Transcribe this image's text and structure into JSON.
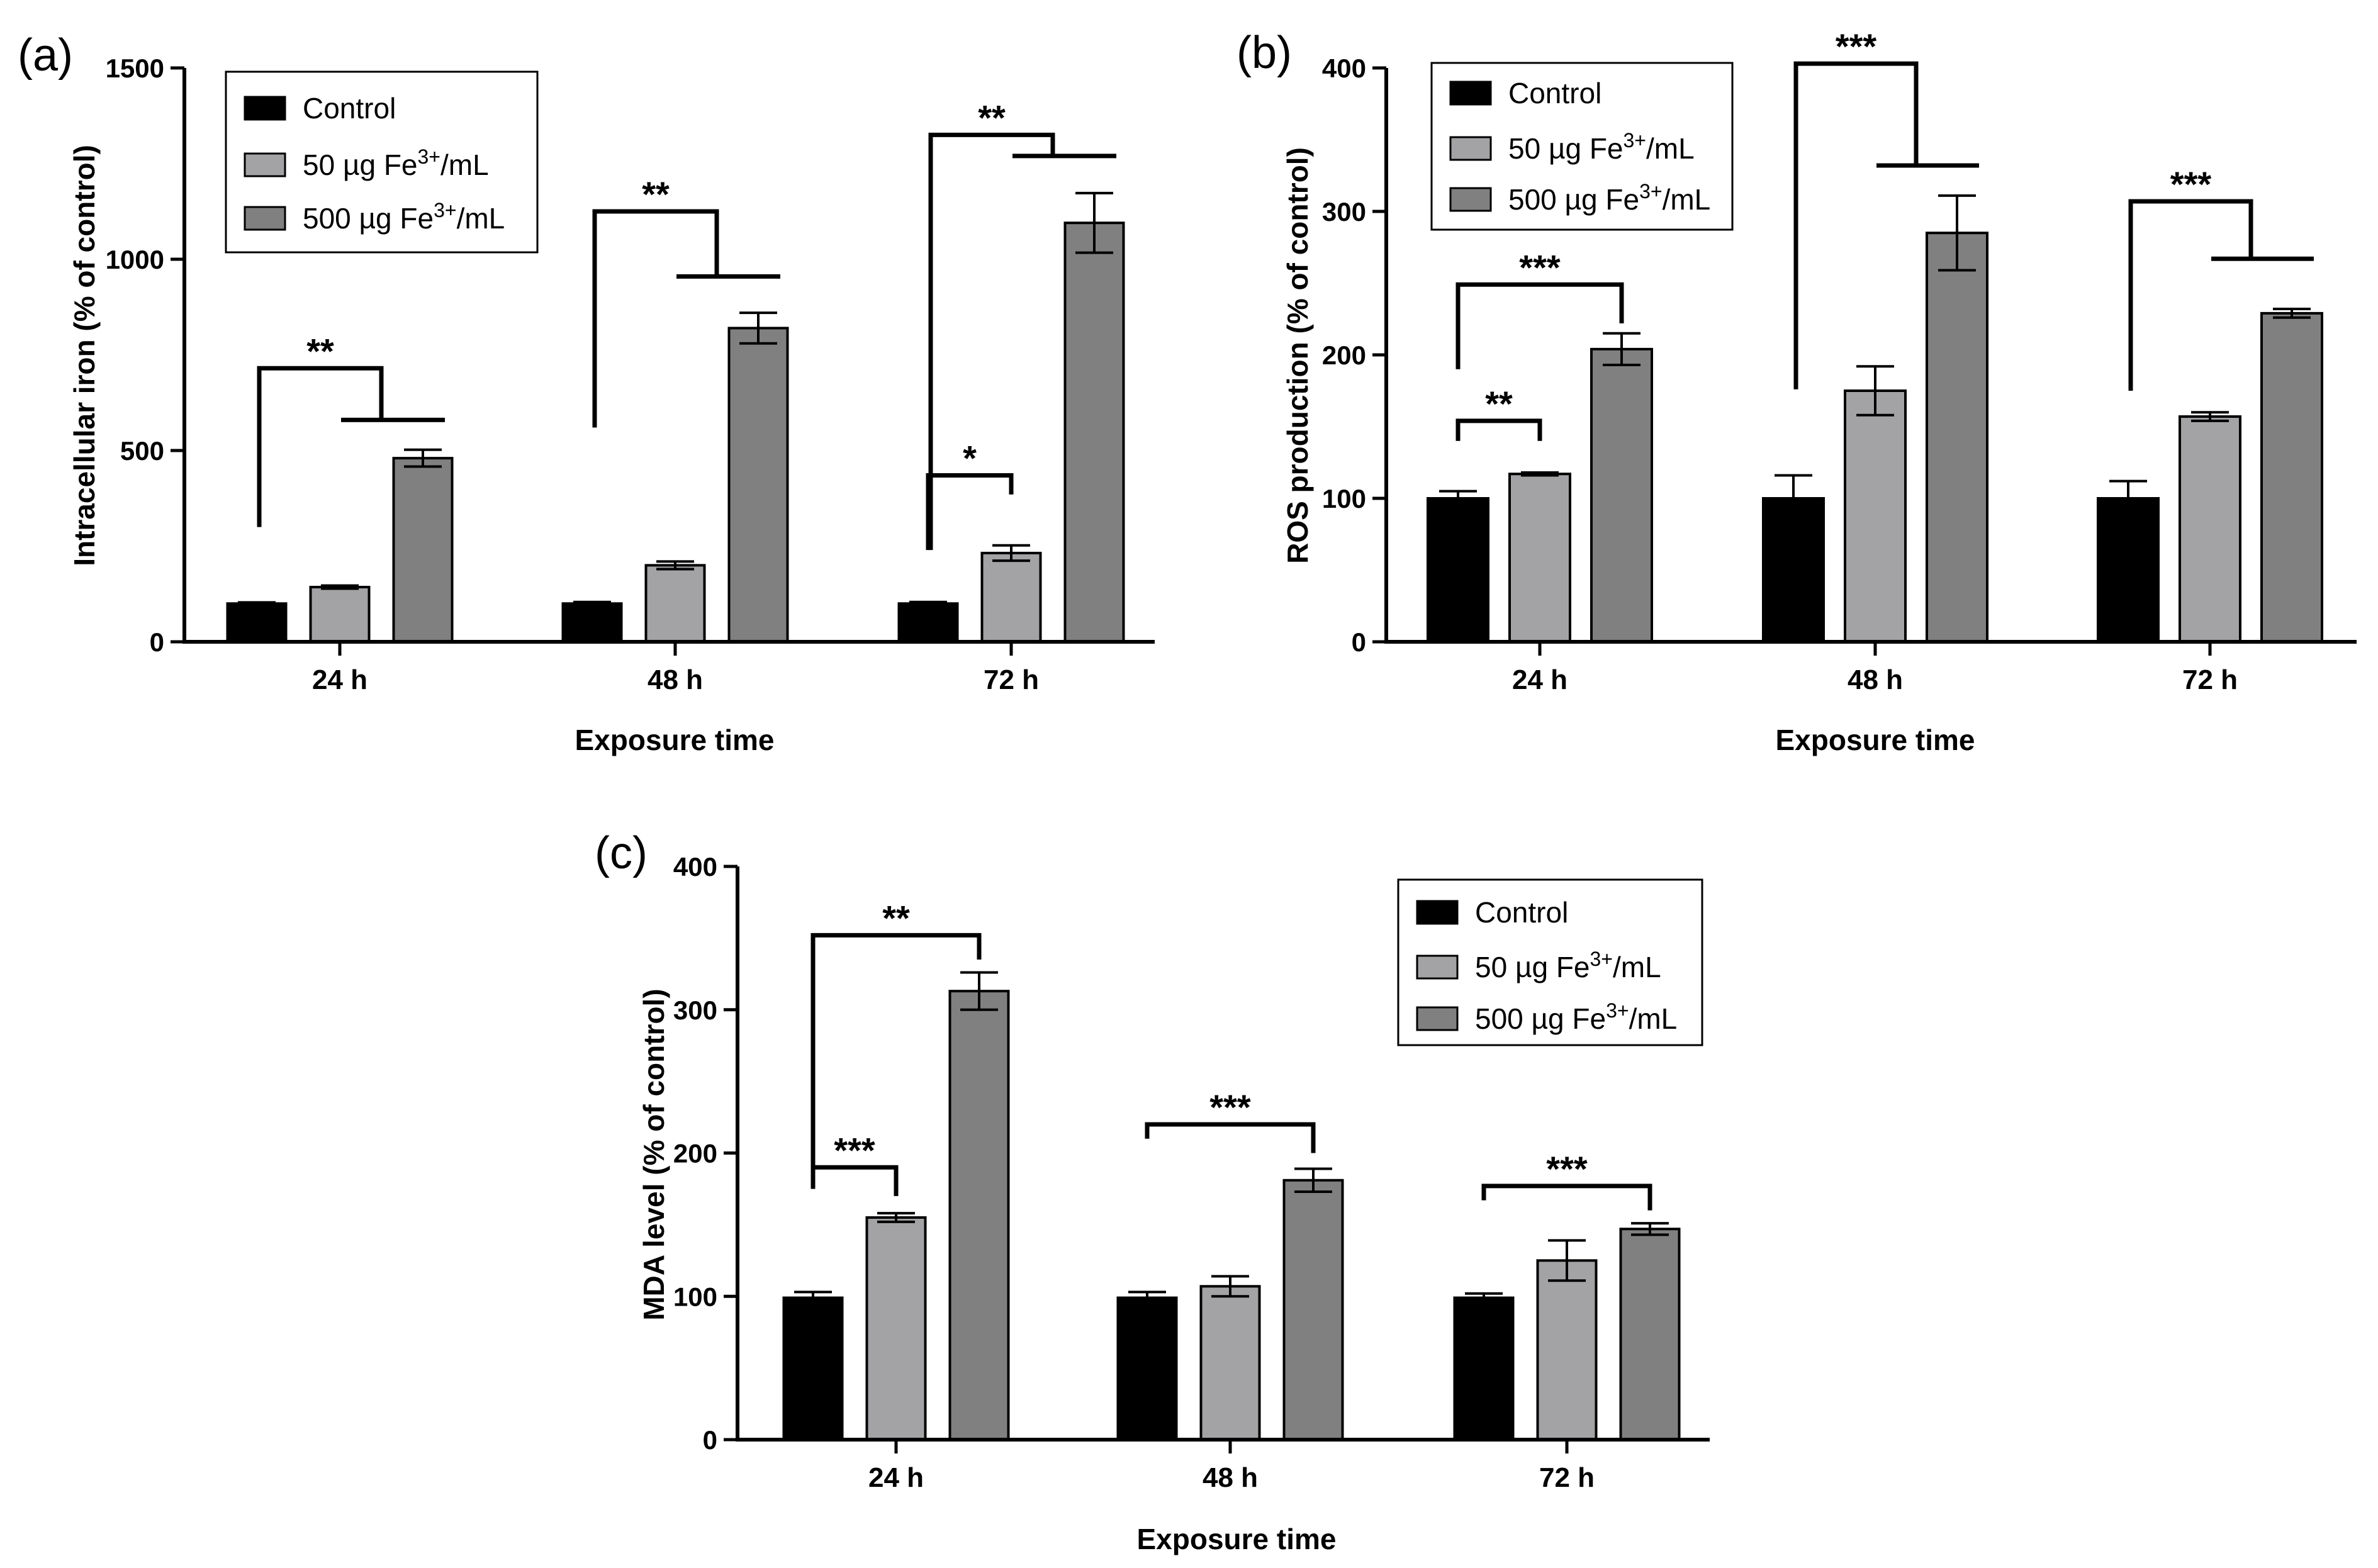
{
  "colors": {
    "control": "#000000",
    "fe50": "#a3a3a6",
    "fe500": "#808080",
    "axis": "#000000",
    "background": "#ffffff"
  },
  "chart_data": [
    {
      "panel": "(a)",
      "type": "bar",
      "title": "",
      "xlabel": "Exposure time",
      "ylabel": "Intracellular iron (% of control)",
      "ylim": [
        0,
        1500
      ],
      "yticks": [
        0,
        500,
        1000,
        1500
      ],
      "categories": [
        "24 h",
        "48 h",
        "72 h"
      ],
      "series": [
        {
          "name": "Control",
          "color": "#000000",
          "values": [
            100,
            100,
            100
          ],
          "errors": [
            3,
            4,
            4
          ]
        },
        {
          "name": "50 µg Fe3+/mL",
          "color": "#a3a3a6",
          "values": [
            143,
            200,
            232
          ],
          "errors": [
            4,
            10,
            20
          ]
        },
        {
          "name": "500 µg Fe3+/mL",
          "color": "#808080",
          "values": [
            480,
            820,
            1095
          ],
          "errors": [
            22,
            40,
            78
          ]
        }
      ],
      "legend": {
        "position": "top-left",
        "entries": [
          {
            "base": "Control",
            "sup": "",
            "tail": ""
          },
          {
            "base": "50 µg Fe",
            "sup": "3+",
            "tail": "/mL"
          },
          {
            "base": "500 µg Fe",
            "sup": "3+",
            "tail": "/mL"
          }
        ]
      },
      "significance": [
        {
          "category": 0,
          "kind": "group",
          "label": "**",
          "top": 715,
          "from_value": 300,
          "to_value": 580
        },
        {
          "category": 1,
          "kind": "group",
          "label": "**",
          "top": 1125,
          "from_value": 560,
          "to_value": 955
        },
        {
          "category": 2,
          "kind": "group",
          "label": "**",
          "top": 1325,
          "from_value": 240,
          "to_value": 1270
        },
        {
          "category": 2,
          "kind": "pair",
          "label": "*",
          "from_series": 0,
          "to_series": 1,
          "top": 435,
          "from_value": 240,
          "to_value": 385
        }
      ]
    },
    {
      "panel": "(b)",
      "type": "bar",
      "title": "",
      "xlabel": "Exposure time",
      "ylabel": "ROS production (% of control)",
      "ylim": [
        0,
        400
      ],
      "yticks": [
        0,
        100,
        200,
        300,
        400
      ],
      "categories": [
        "24 h",
        "48 h",
        "72 h"
      ],
      "series": [
        {
          "name": "Control",
          "color": "#000000",
          "values": [
            100,
            100,
            100
          ],
          "errors": [
            5,
            16,
            12
          ]
        },
        {
          "name": "50 µg Fe3+/mL",
          "color": "#a3a3a6",
          "values": [
            117,
            175,
            157
          ],
          "errors": [
            1,
            17,
            3
          ]
        },
        {
          "name": "500 µg Fe3+/mL",
          "color": "#808080",
          "values": [
            204,
            285,
            229
          ],
          "errors": [
            11,
            26,
            3
          ]
        }
      ],
      "legend": {
        "position": "top-left",
        "entries": [
          {
            "base": "Control",
            "sup": "",
            "tail": ""
          },
          {
            "base": "50 µg Fe",
            "sup": "3+",
            "tail": "/mL"
          },
          {
            "base": "500 µg Fe",
            "sup": "3+",
            "tail": "/mL"
          }
        ]
      },
      "significance": [
        {
          "category": 0,
          "kind": "pair",
          "label": "***",
          "from_series": 0,
          "to_series": 2,
          "top": 249,
          "from_value": 190,
          "to_value": 222
        },
        {
          "category": 0,
          "kind": "pair",
          "label": "**",
          "from_series": 0,
          "to_series": 1,
          "top": 154,
          "from_value": 140,
          "to_value": 140
        },
        {
          "category": 1,
          "kind": "group",
          "label": "***",
          "top": 403,
          "from_value": 176,
          "to_value": 332
        },
        {
          "category": 2,
          "kind": "group",
          "label": "***",
          "top": 307,
          "from_value": 175,
          "to_value": 267
        }
      ]
    },
    {
      "panel": "(c)",
      "type": "bar",
      "title": "",
      "xlabel": "Exposure time",
      "ylabel": "MDA level (% of control)",
      "ylim": [
        0,
        400
      ],
      "yticks": [
        0,
        100,
        200,
        300,
        400
      ],
      "categories": [
        "24 h",
        "48 h",
        "72 h"
      ],
      "series": [
        {
          "name": "Control",
          "color": "#000000",
          "values": [
            99,
            99,
            99
          ],
          "errors": [
            4,
            4,
            3
          ]
        },
        {
          "name": "50 µg Fe3+/mL",
          "color": "#a3a3a6",
          "values": [
            155,
            107,
            125
          ],
          "errors": [
            3,
            7,
            14
          ]
        },
        {
          "name": "500 µg Fe3+/mL",
          "color": "#808080",
          "values": [
            313,
            181,
            147
          ],
          "errors": [
            13,
            8,
            4
          ]
        }
      ],
      "legend": {
        "position": "top-right",
        "entries": [
          {
            "base": "Control",
            "sup": "",
            "tail": ""
          },
          {
            "base": "50 µg Fe",
            "sup": "3+",
            "tail": "/mL"
          },
          {
            "base": "500 µg Fe",
            "sup": "3+",
            "tail": "/mL"
          }
        ]
      },
      "significance": [
        {
          "category": 0,
          "kind": "pair",
          "label": "**",
          "from_series": 0,
          "to_series": 2,
          "top": 352,
          "from_value": 175,
          "to_value": 335
        },
        {
          "category": 0,
          "kind": "pair",
          "label": "***",
          "from_series": 0,
          "to_series": 1,
          "top": 190,
          "from_value": 175,
          "to_value": 170
        },
        {
          "category": 1,
          "kind": "pair",
          "label": "***",
          "from_series": 0,
          "to_series": 2,
          "top": 220,
          "from_value": 210,
          "to_value": 200
        },
        {
          "category": 2,
          "kind": "pair",
          "label": "***",
          "from_series": 0,
          "to_series": 2,
          "top": 177,
          "from_value": 167,
          "to_value": 160
        }
      ]
    }
  ]
}
